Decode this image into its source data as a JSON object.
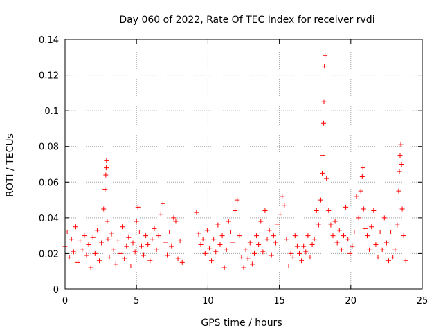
{
  "colors": {
    "points": "#ff0000",
    "grid": "#a0a0a0",
    "axis": "#000000",
    "background": "#ffffff"
  },
  "chart_data": {
    "type": "scatter",
    "title": "Day 060 of 2022, Rate Of TEC Index for receiver rvdi",
    "xlabel": "GPS time / hours",
    "ylabel": "ROTI / TECUs",
    "xlim": [
      0,
      25
    ],
    "ylim": [
      0,
      0.14
    ],
    "xticks": [
      0,
      5,
      10,
      15,
      20,
      25
    ],
    "xtick_labels": [
      "0",
      "5",
      "10",
      "15",
      "20",
      "25"
    ],
    "yticks": [
      0,
      0.02,
      0.04,
      0.06,
      0.08,
      0.1,
      0.12,
      0.14
    ],
    "ytick_labels": [
      "0",
      "0.02",
      "0.04",
      "0.06",
      "0.08",
      "0.1",
      "0.12",
      "0.14"
    ],
    "grid": true,
    "marker": "+",
    "series": [
      {
        "name": "ROTI",
        "x": [
          0.0,
          0.15,
          0.3,
          0.45,
          0.6,
          0.75,
          0.9,
          1.05,
          1.2,
          1.35,
          1.5,
          1.65,
          1.8,
          1.95,
          2.1,
          2.25,
          2.4,
          2.55,
          2.7,
          2.8,
          2.85,
          2.88,
          2.9,
          2.95,
          3.0,
          3.1,
          3.25,
          3.4,
          3.55,
          3.7,
          3.85,
          4.0,
          4.15,
          4.3,
          4.45,
          4.6,
          4.75,
          4.9,
          5.0,
          5.1,
          5.2,
          5.35,
          5.5,
          5.65,
          5.8,
          5.95,
          6.1,
          6.25,
          6.4,
          6.55,
          6.7,
          6.85,
          7.0,
          7.15,
          7.3,
          7.45,
          7.6,
          7.75,
          7.9,
          8.05,
          8.2,
          9.2,
          9.35,
          9.5,
          9.65,
          9.8,
          9.95,
          10.1,
          10.25,
          10.4,
          10.55,
          10.7,
          10.85,
          11.0,
          11.15,
          11.3,
          11.45,
          11.6,
          11.75,
          11.9,
          12.05,
          12.2,
          12.35,
          12.5,
          12.65,
          12.8,
          12.95,
          13.1,
          13.25,
          13.4,
          13.55,
          13.7,
          13.85,
          14.0,
          14.15,
          14.3,
          14.45,
          14.6,
          14.75,
          14.9,
          15.05,
          15.2,
          15.35,
          15.5,
          15.65,
          15.8,
          15.95,
          16.1,
          16.25,
          16.4,
          16.55,
          16.7,
          16.85,
          17.0,
          17.15,
          17.3,
          17.45,
          17.6,
          17.75,
          17.9,
          18.0,
          18.05,
          18.1,
          18.12,
          18.15,
          18.2,
          18.3,
          18.45,
          18.6,
          18.75,
          18.9,
          19.05,
          19.2,
          19.35,
          19.5,
          19.65,
          19.8,
          19.95,
          20.1,
          20.25,
          20.4,
          20.55,
          20.7,
          20.8,
          20.85,
          20.9,
          21.0,
          21.15,
          21.3,
          21.45,
          21.6,
          21.75,
          21.9,
          22.05,
          22.2,
          22.35,
          22.5,
          22.65,
          22.8,
          22.95,
          23.1,
          23.25,
          23.35,
          23.4,
          23.45,
          23.5,
          23.55,
          23.6,
          23.7,
          23.85
        ],
        "y": [
          0.024,
          0.032,
          0.018,
          0.028,
          0.021,
          0.035,
          0.015,
          0.027,
          0.022,
          0.03,
          0.019,
          0.025,
          0.012,
          0.029,
          0.02,
          0.033,
          0.016,
          0.026,
          0.045,
          0.056,
          0.064,
          0.068,
          0.072,
          0.038,
          0.028,
          0.018,
          0.031,
          0.022,
          0.014,
          0.027,
          0.02,
          0.035,
          0.017,
          0.024,
          0.029,
          0.013,
          0.026,
          0.021,
          0.038,
          0.046,
          0.032,
          0.024,
          0.019,
          0.03,
          0.025,
          0.016,
          0.028,
          0.034,
          0.022,
          0.03,
          0.042,
          0.048,
          0.026,
          0.019,
          0.032,
          0.024,
          0.04,
          0.038,
          0.017,
          0.027,
          0.015,
          0.043,
          0.031,
          0.025,
          0.028,
          0.02,
          0.033,
          0.023,
          0.016,
          0.028,
          0.021,
          0.036,
          0.025,
          0.03,
          0.012,
          0.022,
          0.038,
          0.032,
          0.026,
          0.044,
          0.05,
          0.03,
          0.018,
          0.012,
          0.022,
          0.017,
          0.026,
          0.014,
          0.02,
          0.03,
          0.025,
          0.038,
          0.021,
          0.044,
          0.028,
          0.033,
          0.019,
          0.03,
          0.026,
          0.036,
          0.042,
          0.052,
          0.047,
          0.028,
          0.013,
          0.02,
          0.018,
          0.03,
          0.024,
          0.02,
          0.016,
          0.024,
          0.021,
          0.03,
          0.018,
          0.025,
          0.028,
          0.044,
          0.036,
          0.05,
          0.065,
          0.075,
          0.093,
          0.105,
          0.125,
          0.131,
          0.062,
          0.044,
          0.036,
          0.03,
          0.038,
          0.026,
          0.033,
          0.022,
          0.03,
          0.046,
          0.028,
          0.02,
          0.024,
          0.032,
          0.052,
          0.04,
          0.055,
          0.063,
          0.068,
          0.045,
          0.034,
          0.03,
          0.022,
          0.035,
          0.044,
          0.025,
          0.018,
          0.032,
          0.022,
          0.04,
          0.026,
          0.016,
          0.032,
          0.018,
          0.022,
          0.036,
          0.055,
          0.066,
          0.075,
          0.081,
          0.07,
          0.045,
          0.03,
          0.016
        ]
      }
    ]
  }
}
